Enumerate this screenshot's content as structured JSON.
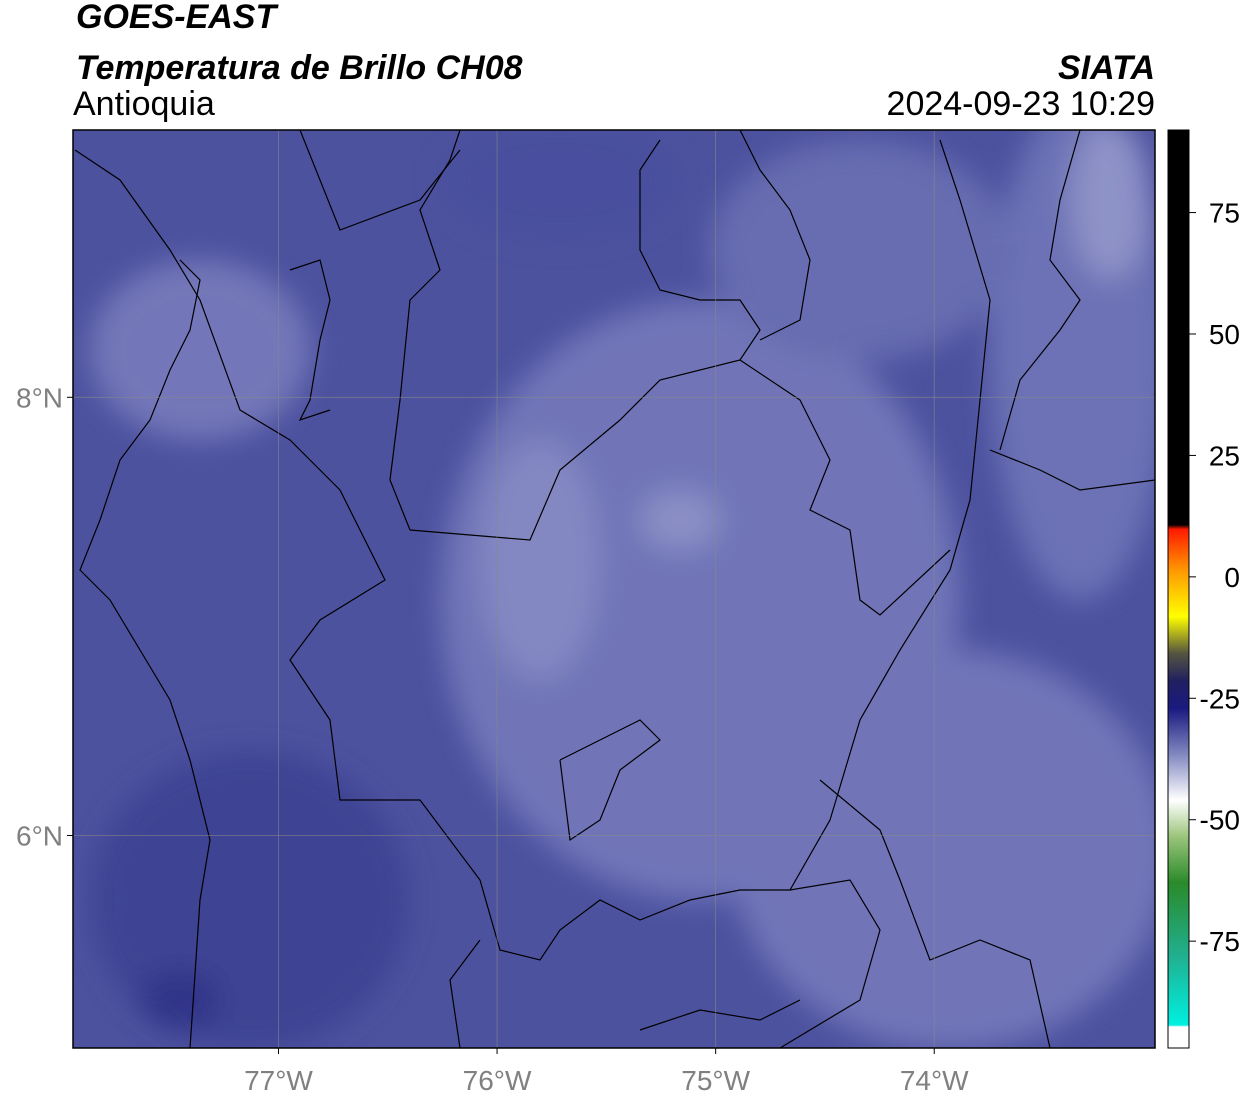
{
  "header": {
    "title": "GOES-EAST",
    "subtitle": "Temperatura de Brillo CH08",
    "region": "Antioquia",
    "source": "SIATA",
    "datetime": "2024-09-23 10:29"
  },
  "map": {
    "xlim": [
      -77.94,
      -72.99
    ],
    "ylim": [
      5.03,
      9.22
    ],
    "xticks": [
      {
        "value": -77,
        "label": "77°W"
      },
      {
        "value": -76,
        "label": "76°W"
      },
      {
        "value": -75,
        "label": "75°W"
      },
      {
        "value": -74,
        "label": "74°W"
      }
    ],
    "yticks": [
      {
        "value": 8,
        "label": "8°N"
      },
      {
        "value": 6,
        "label": "6°N"
      }
    ],
    "grid": true
  },
  "colorbar": {
    "lim": [
      -97,
      92
    ],
    "ticks": [
      75,
      50,
      25,
      0,
      -25,
      -50,
      -75
    ]
  }
}
